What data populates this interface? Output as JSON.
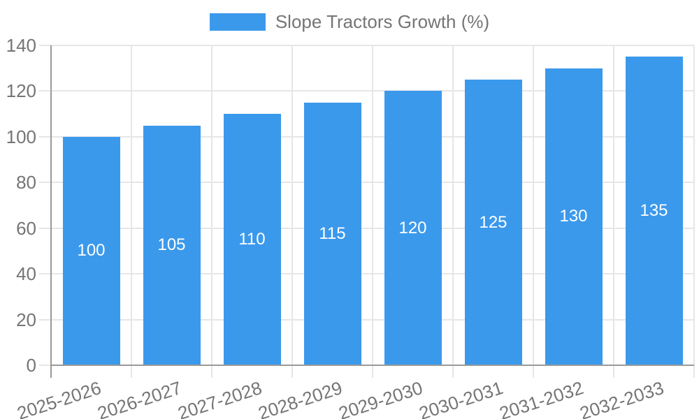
{
  "chart_data": {
    "type": "bar",
    "title": "",
    "xlabel": "",
    "ylabel": "",
    "categories": [
      "2025-2026",
      "2026-2027",
      "2027-2028",
      "2028-2029",
      "2029-2030",
      "2030-2031",
      "2031-2032",
      "2032-2033"
    ],
    "series": [
      {
        "name": "Slope Tractors Growth (%)",
        "values": [
          100,
          105,
          110,
          115,
          120,
          125,
          130,
          135
        ]
      }
    ],
    "value_labels_shown": [
      "100",
      "105",
      "110",
      "115",
      "120",
      "125",
      "130",
      "135"
    ],
    "ylim": [
      0,
      140
    ],
    "yticks": [
      0,
      20,
      40,
      60,
      80,
      100,
      120,
      140
    ],
    "grid": true,
    "legend_position": "top",
    "x_label_rotation_deg": -18,
    "colors": {
      "bar": "#3b99ec",
      "value_label": "#ffffff",
      "axis_line": "#999999",
      "gridline": "#e6e6e6",
      "tick_label": "#757575",
      "legend_text": "#757575",
      "background": "#ffffff"
    }
  }
}
